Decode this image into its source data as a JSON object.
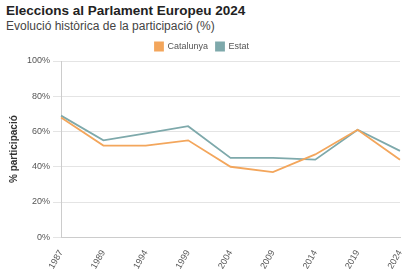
{
  "chart_data": {
    "type": "line",
    "title": "Eleccions al Parlament Europeu 2024",
    "subtitle": "Evolució històrica de la participació (%)",
    "y_label": "% participació",
    "categories": [
      "1987",
      "1989",
      "1994",
      "1999",
      "2004",
      "2009",
      "2014",
      "2019",
      "2024"
    ],
    "series": [
      {
        "name": "Catalunya",
        "color": "#f3a65c",
        "values": [
          68,
          52,
          52,
          55,
          40,
          37,
          47,
          61,
          44
        ]
      },
      {
        "name": "Estat",
        "color": "#7ea9ab",
        "values": [
          69,
          55,
          59,
          63,
          45,
          45,
          44,
          61,
          49
        ]
      }
    ],
    "ylim": [
      0,
      100
    ],
    "yticks": [
      {
        "value": 0,
        "label": "0%"
      },
      {
        "value": 20,
        "label": "20%"
      },
      {
        "value": 40,
        "label": "40%"
      },
      {
        "value": 60,
        "label": "60%"
      },
      {
        "value": 80,
        "label": "80%"
      },
      {
        "value": 100,
        "label": "100%"
      }
    ],
    "grid": true,
    "legend": "top"
  }
}
